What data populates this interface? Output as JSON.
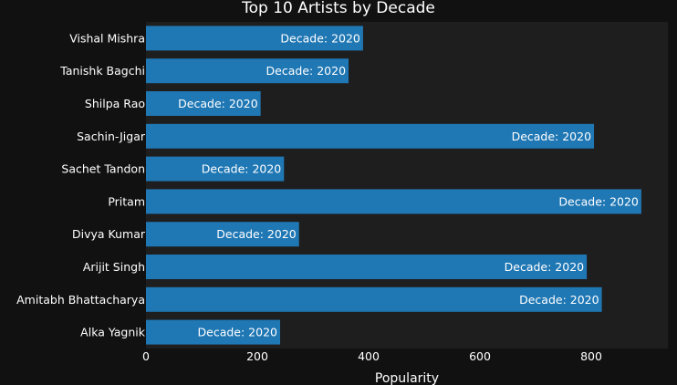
{
  "chart_data": {
    "type": "bar",
    "orientation": "horizontal",
    "title": "Top 10 Artists by Decade",
    "xlabel": "Popularity",
    "ylabel": "",
    "xlim": [
      0,
      940
    ],
    "xticks": [
      0,
      200,
      400,
      600,
      800
    ],
    "grid": false,
    "categories": [
      "Vishal Mishra",
      "Tanishk Bagchi",
      "Shilpa Rao",
      "Sachin-Jigar",
      "Sachet Tandon",
      "Pritam",
      "Divya Kumar",
      "Arijit Singh",
      "Amitabh Bhattacharya",
      "Alka Yagnik"
    ],
    "values": [
      390,
      364,
      206,
      805,
      248,
      890,
      275,
      792,
      819,
      241
    ],
    "bar_labels": [
      "Decade: 2020",
      "Decade: 2020",
      "Decade: 2020",
      "Decade: 2020",
      "Decade: 2020",
      "Decade: 2020",
      "Decade: 2020",
      "Decade: 2020",
      "Decade: 2020",
      "Decade: 2020"
    ],
    "colors": {
      "bar": "#1f77b4",
      "plot_bg": "#1e1e1e",
      "page_bg": "#111111",
      "text": "#ffffff"
    }
  }
}
